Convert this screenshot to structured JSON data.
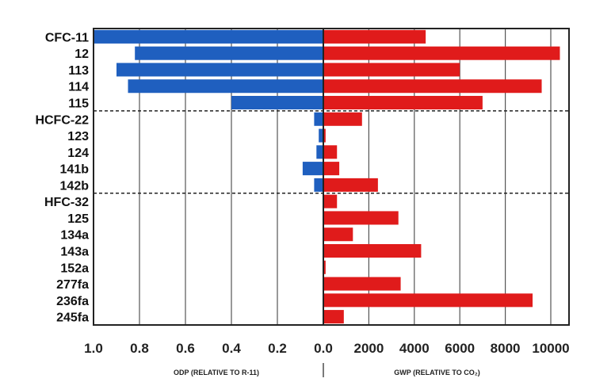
{
  "chart_data": {
    "type": "bar",
    "subtype": "back-to-back horizontal bar",
    "categories": [
      "CFC-11",
      "12",
      "113",
      "114",
      "115",
      "HCFC-22",
      "123",
      "124",
      "141b",
      "142b",
      "HFC-32",
      "125",
      "134a",
      "143a",
      "152a",
      "277fa",
      "236fa",
      "245fa"
    ],
    "group_dividers_after": [
      "115",
      "142b"
    ],
    "left_panel": {
      "xlabel": "ODP (RELATIVE TO R-11)",
      "xlim": [
        1.0,
        0.0
      ],
      "ticks": [
        "1.0",
        "0.8",
        "0.6",
        "0.4",
        "0.2",
        "0.0"
      ],
      "tick_values": [
        1.0,
        0.8,
        0.6,
        0.4,
        0.2,
        0.0
      ],
      "color": "#1f5fbf",
      "values": [
        1.0,
        0.82,
        0.9,
        0.85,
        0.4,
        0.04,
        0.02,
        0.03,
        0.09,
        0.04,
        0,
        0,
        0,
        0,
        0,
        0,
        0,
        0
      ]
    },
    "right_panel": {
      "xlabel": "GWP (RELATIVE TO CO₂)",
      "xlim": [
        0,
        10500
      ],
      "ticks": [
        "2000",
        "4000",
        "6000",
        "8000",
        "10000"
      ],
      "tick_values": [
        2000,
        4000,
        6000,
        8000,
        10000
      ],
      "color": "#e01b1b",
      "values": [
        4500,
        10400,
        6000,
        9600,
        7000,
        1700,
        100,
        600,
        700,
        2400,
        600,
        3300,
        1300,
        4300,
        100,
        3400,
        9200,
        900
      ]
    },
    "grid": true
  }
}
